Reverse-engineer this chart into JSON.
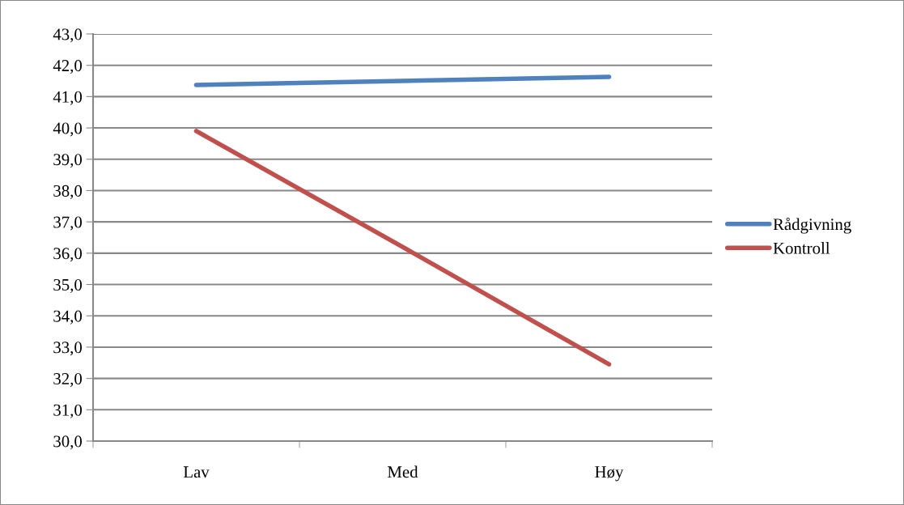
{
  "chart_data": {
    "type": "line",
    "categories": [
      "Lav",
      "Med",
      "Høy"
    ],
    "series": [
      {
        "name": "Rådgivning",
        "color": "#4f81bd",
        "values": [
          41.37,
          41.5,
          41.63
        ]
      },
      {
        "name": "Kontroll",
        "color": "#c0504d",
        "values": [
          39.9,
          36.2,
          32.45
        ]
      }
    ],
    "ylim": [
      30,
      43
    ],
    "yticks": [
      {
        "value": 30,
        "label": "30,0"
      },
      {
        "value": 31,
        "label": "31,0"
      },
      {
        "value": 32,
        "label": "32,0"
      },
      {
        "value": 33,
        "label": "33,0"
      },
      {
        "value": 34,
        "label": "34,0"
      },
      {
        "value": 35,
        "label": "35,0"
      },
      {
        "value": 36,
        "label": "36,0"
      },
      {
        "value": 37,
        "label": "37,0"
      },
      {
        "value": 38,
        "label": "38,0"
      },
      {
        "value": 39,
        "label": "39,0"
      },
      {
        "value": 40,
        "label": "40,0"
      },
      {
        "value": 41,
        "label": "41,0"
      },
      {
        "value": 42,
        "label": "42,0"
      },
      {
        "value": 43,
        "label": "43,0"
      }
    ],
    "grid": "y",
    "legend": "right",
    "marker": "none",
    "line_style": "solid"
  }
}
